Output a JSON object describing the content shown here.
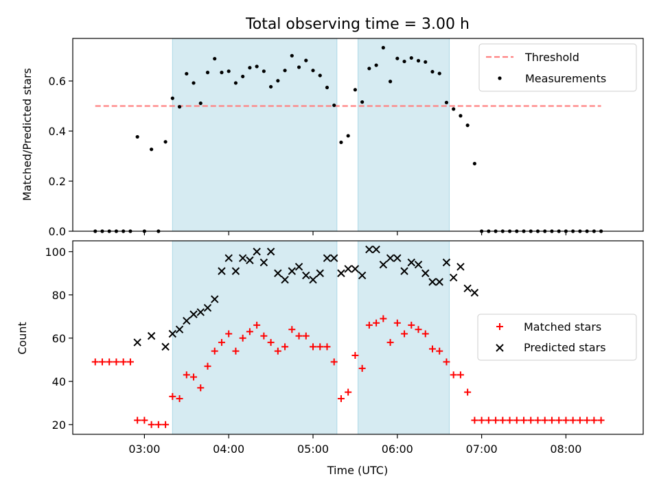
{
  "chart_data": [
    {
      "type": "scatter",
      "title": "Total observing time = 3.00 h",
      "ylabel": "Matched/Predicted stars",
      "ylim": [
        0,
        0.77
      ],
      "yticks": [
        0.0,
        0.2,
        0.4,
        0.6
      ],
      "ytick_labels": [
        "0.0",
        "0.2",
        "0.4",
        "0.6"
      ],
      "grid": false,
      "legend_placement": "upper right",
      "threshold": {
        "name": "Threshold",
        "value": 0.5,
        "x_start": "02:25",
        "x_end": "08:25",
        "color": "#ff7f7f"
      },
      "series": [
        {
          "name": "Measurements",
          "color": "#000000",
          "marker": "dot",
          "points": [
            [
              "02:25",
              0
            ],
            [
              "02:30",
              0
            ],
            [
              "02:35",
              0
            ],
            [
              "02:40",
              0
            ],
            [
              "02:45",
              0
            ],
            [
              "02:50",
              0
            ],
            [
              "02:55",
              0.377
            ],
            [
              "03:00",
              0
            ],
            [
              "03:05",
              0.327
            ],
            [
              "03:10",
              0
            ],
            [
              "03:15",
              0.357
            ],
            [
              "03:20",
              0.531
            ],
            [
              "03:25",
              0.497
            ],
            [
              "03:30",
              0.629
            ],
            [
              "03:35",
              0.592
            ],
            [
              "03:40",
              0.511
            ],
            [
              "03:45",
              0.634
            ],
            [
              "03:50",
              0.689
            ],
            [
              "03:55",
              0.634
            ],
            [
              "04:00",
              0.639
            ],
            [
              "04:05",
              0.592
            ],
            [
              "04:10",
              0.618
            ],
            [
              "04:15",
              0.653
            ],
            [
              "04:20",
              0.658
            ],
            [
              "04:25",
              0.639
            ],
            [
              "04:30",
              0.577
            ],
            [
              "04:35",
              0.601
            ],
            [
              "04:40",
              0.642
            ],
            [
              "04:45",
              0.701
            ],
            [
              "04:50",
              0.655
            ],
            [
              "04:55",
              0.682
            ],
            [
              "05:00",
              0.642
            ],
            [
              "05:05",
              0.622
            ],
            [
              "05:10",
              0.574
            ],
            [
              "05:15",
              0.503
            ],
            [
              "05:20",
              0.355
            ],
            [
              "05:25",
              0.381
            ],
            [
              "05:30",
              0.565
            ],
            [
              "05:35",
              0.516
            ],
            [
              "05:40",
              0.65
            ],
            [
              "05:45",
              0.663
            ],
            [
              "05:50",
              0.733
            ],
            [
              "05:55",
              0.598
            ],
            [
              "06:00",
              0.69
            ],
            [
              "06:05",
              0.678
            ],
            [
              "06:10",
              0.692
            ],
            [
              "06:15",
              0.681
            ],
            [
              "06:20",
              0.676
            ],
            [
              "06:25",
              0.637
            ],
            [
              "06:30",
              0.63
            ],
            [
              "06:35",
              0.514
            ],
            [
              "06:40",
              0.488
            ],
            [
              "06:45",
              0.461
            ],
            [
              "06:50",
              0.423
            ],
            [
              "06:55",
              0.27
            ],
            [
              "07:00",
              0
            ],
            [
              "07:05",
              0
            ],
            [
              "07:10",
              0
            ],
            [
              "07:15",
              0
            ],
            [
              "07:20",
              0
            ],
            [
              "07:25",
              0
            ],
            [
              "07:30",
              0
            ],
            [
              "07:35",
              0
            ],
            [
              "07:40",
              0
            ],
            [
              "07:45",
              0
            ],
            [
              "07:50",
              0
            ],
            [
              "07:55",
              0
            ],
            [
              "08:00",
              0
            ],
            [
              "08:05",
              0
            ],
            [
              "08:10",
              0
            ],
            [
              "08:15",
              0
            ],
            [
              "08:20",
              0
            ],
            [
              "08:25",
              0
            ]
          ]
        }
      ]
    },
    {
      "type": "scatter",
      "xlabel": "Time (UTC)",
      "ylabel": "Count",
      "ylim": [
        15.5,
        105
      ],
      "yticks": [
        20,
        40,
        60,
        80,
        100
      ],
      "grid": false,
      "legend_placement": "center right",
      "series": [
        {
          "name": "Matched stars",
          "color": "#ff0000",
          "marker": "plus",
          "points": [
            [
              "02:25",
              49
            ],
            [
              "02:30",
              49
            ],
            [
              "02:35",
              49
            ],
            [
              "02:40",
              49
            ],
            [
              "02:45",
              49
            ],
            [
              "02:50",
              49
            ],
            [
              "02:55",
              22
            ],
            [
              "03:00",
              22
            ],
            [
              "03:05",
              20
            ],
            [
              "03:10",
              20
            ],
            [
              "03:15",
              20
            ],
            [
              "03:20",
              33
            ],
            [
              "03:25",
              32
            ],
            [
              "03:30",
              43
            ],
            [
              "03:35",
              42
            ],
            [
              "03:40",
              37
            ],
            [
              "03:45",
              47
            ],
            [
              "03:50",
              54
            ],
            [
              "03:55",
              58
            ],
            [
              "04:00",
              62
            ],
            [
              "04:05",
              54
            ],
            [
              "04:10",
              60
            ],
            [
              "04:15",
              63
            ],
            [
              "04:20",
              66
            ],
            [
              "04:25",
              61
            ],
            [
              "04:30",
              58
            ],
            [
              "04:35",
              54
            ],
            [
              "04:40",
              56
            ],
            [
              "04:45",
              64
            ],
            [
              "04:50",
              61
            ],
            [
              "04:55",
              61
            ],
            [
              "05:00",
              56
            ],
            [
              "05:05",
              56
            ],
            [
              "05:10",
              56
            ],
            [
              "05:15",
              49
            ],
            [
              "05:20",
              32
            ],
            [
              "05:25",
              35
            ],
            [
              "05:30",
              52
            ],
            [
              "05:35",
              46
            ],
            [
              "05:40",
              66
            ],
            [
              "05:45",
              67
            ],
            [
              "05:50",
              69
            ],
            [
              "05:55",
              58
            ],
            [
              "06:00",
              67
            ],
            [
              "06:05",
              62
            ],
            [
              "06:10",
              66
            ],
            [
              "06:15",
              64
            ],
            [
              "06:20",
              62
            ],
            [
              "06:25",
              55
            ],
            [
              "06:30",
              54
            ],
            [
              "06:35",
              49
            ],
            [
              "06:40",
              43
            ],
            [
              "06:45",
              43
            ],
            [
              "06:50",
              35
            ],
            [
              "06:55",
              22
            ],
            [
              "07:00",
              22
            ],
            [
              "07:05",
              22
            ],
            [
              "07:10",
              22
            ],
            [
              "07:15",
              22
            ],
            [
              "07:20",
              22
            ],
            [
              "07:25",
              22
            ],
            [
              "07:30",
              22
            ],
            [
              "07:35",
              22
            ],
            [
              "07:40",
              22
            ],
            [
              "07:45",
              22
            ],
            [
              "07:50",
              22
            ],
            [
              "07:55",
              22
            ],
            [
              "08:00",
              22
            ],
            [
              "08:05",
              22
            ],
            [
              "08:10",
              22
            ],
            [
              "08:15",
              22
            ],
            [
              "08:20",
              22
            ],
            [
              "08:25",
              22
            ]
          ]
        },
        {
          "name": "Predicted stars",
          "color": "#000000",
          "marker": "x",
          "points": [
            [
              "02:55",
              58
            ],
            [
              "03:05",
              61
            ],
            [
              "03:15",
              56
            ],
            [
              "03:20",
              62
            ],
            [
              "03:25",
              64
            ],
            [
              "03:30",
              68
            ],
            [
              "03:35",
              71
            ],
            [
              "03:40",
              72
            ],
            [
              "03:45",
              74
            ],
            [
              "03:50",
              78
            ],
            [
              "03:55",
              91
            ],
            [
              "04:00",
              97
            ],
            [
              "04:05",
              91
            ],
            [
              "04:10",
              97
            ],
            [
              "04:15",
              96
            ],
            [
              "04:20",
              100
            ],
            [
              "04:25",
              95
            ],
            [
              "04:30",
              100
            ],
            [
              "04:35",
              90
            ],
            [
              "04:40",
              87
            ],
            [
              "04:45",
              91
            ],
            [
              "04:50",
              93
            ],
            [
              "04:55",
              89
            ],
            [
              "05:00",
              87
            ],
            [
              "05:05",
              90
            ],
            [
              "05:10",
              97
            ],
            [
              "05:15",
              97
            ],
            [
              "05:20",
              90
            ],
            [
              "05:25",
              92
            ],
            [
              "05:30",
              92
            ],
            [
              "05:35",
              89
            ],
            [
              "05:40",
              101
            ],
            [
              "05:45",
              101
            ],
            [
              "05:50",
              94
            ],
            [
              "05:55",
              97
            ],
            [
              "06:00",
              97
            ],
            [
              "06:05",
              91
            ],
            [
              "06:10",
              95
            ],
            [
              "06:15",
              94
            ],
            [
              "06:20",
              90
            ],
            [
              "06:25",
              86
            ],
            [
              "06:30",
              86
            ],
            [
              "06:35",
              95
            ],
            [
              "06:40",
              88
            ],
            [
              "06:45",
              93
            ],
            [
              "06:50",
              83
            ],
            [
              "06:55",
              81
            ]
          ]
        }
      ]
    }
  ],
  "shared_x": {
    "range": [
      "02:09",
      "08:55"
    ],
    "ticks": [
      "03:00",
      "04:00",
      "05:00",
      "06:00",
      "07:00",
      "08:00"
    ],
    "shaded_intervals": [
      [
        "03:20",
        "05:17"
      ],
      [
        "05:32",
        "06:37"
      ]
    ],
    "shade_color": "#add8e6"
  }
}
